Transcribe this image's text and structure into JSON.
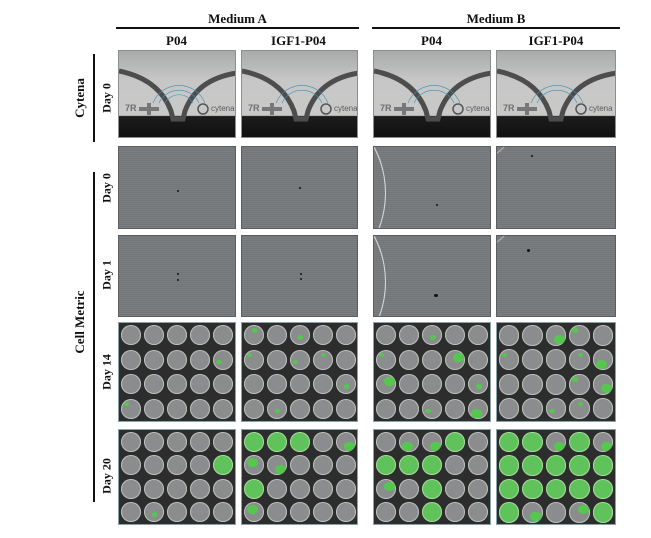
{
  "columns": {
    "medium_a": "Medium A",
    "medium_b": "Medium B",
    "p04": "P04",
    "igf1_p04": "IGF1-P04"
  },
  "rows": {
    "cytena": "Cytena",
    "cell_metric": "Cell Metric",
    "day0": "Day 0",
    "day1": "Day 1",
    "day14": "Day 14",
    "day20": "Day 20"
  },
  "panel_text": {
    "cytena_logo": "cytena",
    "cytena_mark": "7R"
  },
  "colors": {
    "growth": "#5fc25a",
    "empty_well": "#8b8c8d",
    "background_plate": "#2d2d2d"
  }
}
